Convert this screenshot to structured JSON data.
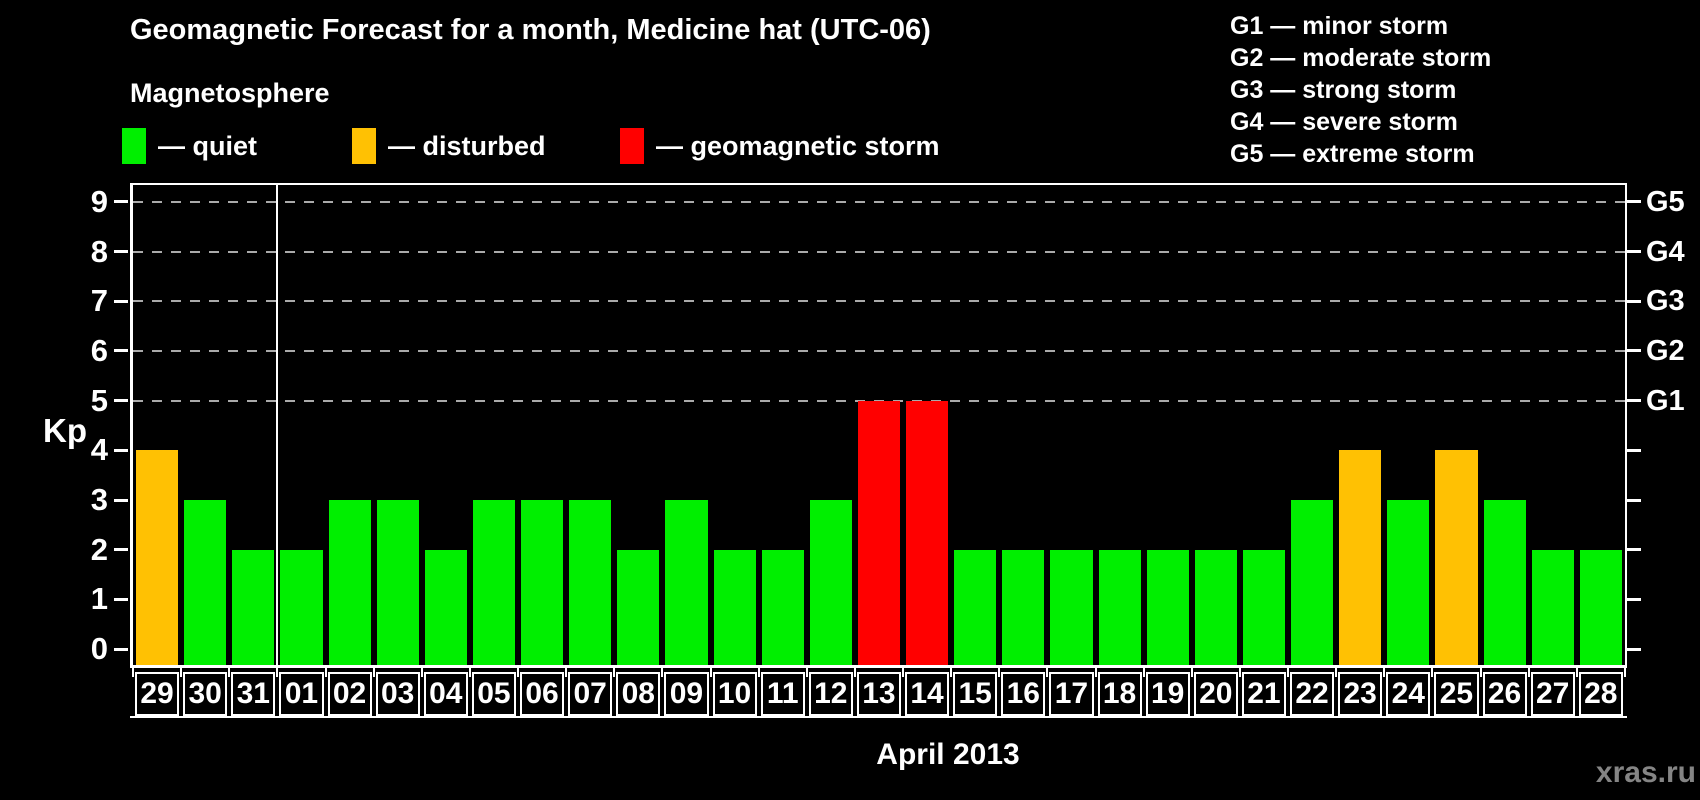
{
  "header": {
    "title": "Geomagnetic Forecast for a month, Medicine hat (UTC-06)",
    "subtitle": "Magnetosphere"
  },
  "watermark": "xras.ru",
  "legend": {
    "items": [
      {
        "name": "quiet",
        "label": "— quiet",
        "color": "#00ef00"
      },
      {
        "name": "disturbed",
        "label": "— disturbed",
        "color": "#ffc103"
      },
      {
        "name": "geomagnetic-storm",
        "label": "— geomagnetic storm",
        "color": "#ff0000"
      }
    ]
  },
  "storm_scale_legend": {
    "lines": [
      "G1 — minor storm",
      "G2 — moderate storm",
      "G3 — strong storm",
      "G4 — severe storm",
      "G5 — extreme storm"
    ]
  },
  "chart_data": {
    "type": "bar",
    "title": "Geomagnetic Forecast for a month, Medicine hat (UTC-06)",
    "xlabel": "April 2013",
    "ylabel": "Kp",
    "ylim": [
      0,
      9
    ],
    "yticks": [
      0,
      1,
      2,
      3,
      4,
      5,
      6,
      7,
      8,
      9
    ],
    "grid": "dashed horizontal lines at Kp 5,6,7,8,9",
    "legend_position": "top",
    "right_axis": [
      {
        "kp": 5,
        "label": "G1"
      },
      {
        "kp": 6,
        "label": "G2"
      },
      {
        "kp": 7,
        "label": "G3"
      },
      {
        "kp": 8,
        "label": "G4"
      },
      {
        "kp": 9,
        "label": "G5"
      }
    ],
    "categories": [
      "29",
      "30",
      "31",
      "01",
      "02",
      "03",
      "04",
      "05",
      "06",
      "07",
      "08",
      "09",
      "10",
      "11",
      "12",
      "13",
      "14",
      "15",
      "16",
      "17",
      "18",
      "19",
      "20",
      "21",
      "22",
      "23",
      "24",
      "25",
      "26",
      "27",
      "28"
    ],
    "values": [
      4,
      3,
      2,
      2,
      3,
      3,
      2,
      3,
      3,
      3,
      2,
      3,
      2,
      2,
      3,
      5,
      5,
      2,
      2,
      2,
      2,
      2,
      2,
      2,
      3,
      4,
      3,
      4,
      3,
      2,
      2
    ],
    "month_separator_after_index": 2,
    "color_rules": {
      "quiet_max_kp": 3,
      "disturbed_kp": 4,
      "storm_min_kp": 5
    },
    "colors": {
      "quiet": "#00ef00",
      "disturbed": "#ffc103",
      "storm": "#ff0000"
    }
  }
}
